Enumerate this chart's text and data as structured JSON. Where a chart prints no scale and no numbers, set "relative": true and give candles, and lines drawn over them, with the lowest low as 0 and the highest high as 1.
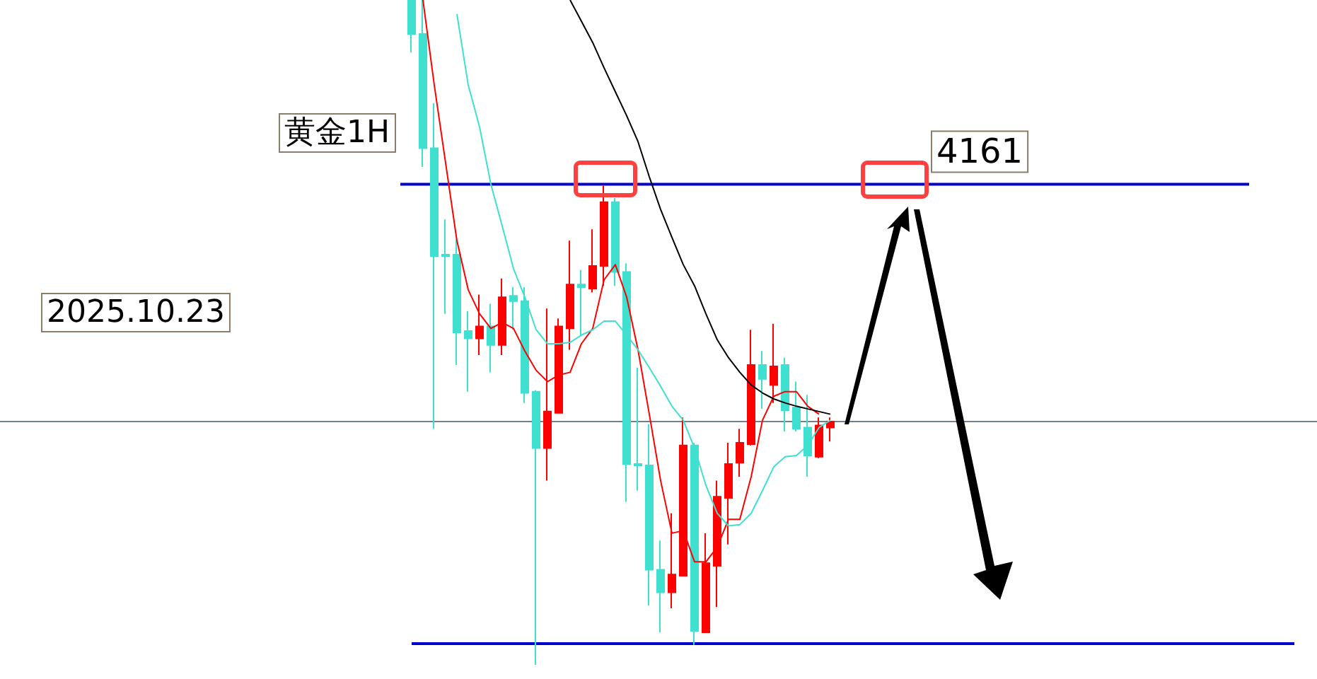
{
  "chart_data": {
    "type": "candlestick",
    "title": "黄金1H",
    "annotations": [
      "2025.10.23",
      "4161"
    ],
    "relative": true,
    "categories": [
      null,
      null,
      null,
      null,
      null,
      null,
      null,
      null,
      null,
      null,
      null,
      null,
      null,
      null,
      null,
      null,
      null,
      null,
      null,
      null,
      null,
      null,
      null,
      null,
      null,
      null,
      null,
      null,
      null,
      null,
      null,
      null,
      null,
      null,
      null,
      null,
      null,
      null
    ],
    "ohlc": [
      [
        1.0,
        1.0,
        0.921,
        0.949
      ],
      [
        0.949,
        1.0,
        0.749,
        0.777
      ],
      [
        0.777,
        0.845,
        0.355,
        0.615
      ],
      [
        0.617,
        0.67,
        0.528,
        0.615
      ],
      [
        0.617,
        0.64,
        0.451,
        0.5
      ],
      [
        0.502,
        0.532,
        0.411,
        0.491
      ],
      [
        0.491,
        0.557,
        0.466,
        0.509
      ],
      [
        0.509,
        0.543,
        0.44,
        0.481
      ],
      [
        0.481,
        0.581,
        0.466,
        0.553
      ],
      [
        0.555,
        0.568,
        0.504,
        0.547
      ],
      [
        0.547,
        0.568,
        0.394,
        0.409
      ],
      [
        0.411,
        0.413,
        0.0,
        0.326
      ],
      [
        0.326,
        0.536,
        0.277,
        0.381
      ],
      [
        0.379,
        0.521,
        0.379,
        0.509
      ],
      [
        0.506,
        0.638,
        0.474,
        0.572
      ],
      [
        0.572,
        0.594,
        0.494,
        0.568
      ],
      [
        0.566,
        0.655,
        0.56,
        0.6
      ],
      [
        0.6,
        0.721,
        0.57,
        0.696
      ],
      [
        0.696,
        0.702,
        0.57,
        0.591
      ],
      [
        0.591,
        0.604,
        0.245,
        0.302
      ],
      [
        0.302,
        0.447,
        0.262,
        0.3
      ],
      [
        0.3,
        0.362,
        0.089,
        0.143
      ],
      [
        0.143,
        0.187,
        0.049,
        0.109
      ],
      [
        0.109,
        0.228,
        0.085,
        0.136
      ],
      [
        0.134,
        0.372,
        0.134,
        0.33
      ],
      [
        0.33,
        0.334,
        0.03,
        0.051
      ],
      [
        0.049,
        0.198,
        0.049,
        0.153
      ],
      [
        0.149,
        0.277,
        0.087,
        0.253
      ],
      [
        0.251,
        0.334,
        0.181,
        0.302
      ],
      [
        0.304,
        0.355,
        0.283,
        0.334
      ],
      [
        0.332,
        0.504,
        0.33,
        0.451
      ],
      [
        0.451,
        0.472,
        0.385,
        0.43
      ],
      [
        0.421,
        0.513,
        0.394,
        0.449
      ],
      [
        0.451,
        0.462,
        0.351,
        0.383
      ],
      [
        0.387,
        0.426,
        0.351,
        0.355
      ],
      [
        0.357,
        0.406,
        0.283,
        0.315
      ],
      [
        0.313,
        0.372,
        0.311,
        0.36
      ],
      [
        0.357,
        0.372,
        0.336,
        0.366
      ]
    ],
    "colors": [
      "#40e0d0",
      "#40e0d0",
      "#40e0d0",
      "#40e0d0",
      "#40e0d0",
      "#40e0d0",
      "#ff0000",
      "#40e0d0",
      "#ff0000",
      "#40e0d0",
      "#40e0d0",
      "#40e0d0",
      "#ff0000",
      "#ff0000",
      "#ff0000",
      "#40e0d0",
      "#ff0000",
      "#ff0000",
      "#40e0d0",
      "#40e0d0",
      "#40e0d0",
      "#40e0d0",
      "#40e0d0",
      "#ff0000",
      "#ff0000",
      "#40e0d0",
      "#ff0000",
      "#ff0000",
      "#ff0000",
      "#ff0000",
      "#ff0000",
      "#40e0d0",
      "#ff0000",
      "#40e0d0",
      "#40e0d0",
      "#40e0d0",
      "#ff0000",
      "#ff0000"
    ],
    "series": [
      {
        "type": "line",
        "color": "#ff0000",
        "values": [
          null,
          1.0,
          0.872,
          0.755,
          0.638,
          0.564,
          0.528,
          0.506,
          0.515,
          0.506,
          0.472,
          0.443,
          0.426,
          0.436,
          0.44,
          0.483,
          0.506,
          0.579,
          0.602,
          0.553,
          0.474,
          0.377,
          0.277,
          0.198,
          0.202,
          0.155,
          0.155,
          0.177,
          0.219,
          0.219,
          0.283,
          0.368,
          0.404,
          0.411,
          0.411,
          0.389,
          0.377,
          null
        ]
      },
      {
        "type": "line",
        "color": "#40e0d0",
        "values": [
          null,
          null,
          null,
          null,
          0.979,
          0.872,
          0.809,
          0.723,
          0.66,
          0.596,
          0.553,
          0.504,
          0.483,
          0.483,
          0.485,
          0.496,
          0.504,
          0.517,
          0.517,
          0.496,
          0.474,
          0.447,
          0.419,
          0.389,
          0.368,
          0.326,
          0.27,
          0.228,
          0.209,
          0.211,
          0.228,
          0.262,
          0.298,
          0.313,
          0.315,
          0.33,
          0.357,
          0.368
        ]
      },
      {
        "type": "line",
        "color": "#000000",
        "values": [
          null,
          null,
          null,
          null,
          null,
          null,
          null,
          null,
          null,
          null,
          null,
          null,
          null,
          null,
          1.0,
          0.968,
          0.936,
          0.898,
          0.862,
          0.826,
          0.787,
          0.734,
          0.685,
          0.643,
          0.602,
          0.57,
          0.528,
          0.489,
          0.462,
          0.44,
          0.421,
          0.409,
          0.4,
          0.394,
          0.389,
          0.385,
          0.381,
          0.377
        ]
      }
    ],
    "ref_lines": [
      {
        "axis": "y",
        "value": 0.723,
        "color": "#0000cc"
      },
      {
        "axis": "y",
        "value": 0.366,
        "color": "#708090"
      },
      {
        "axis": "y",
        "value": 0.032,
        "color": "#0000cc"
      }
    ],
    "marker": "none",
    "line_style": "solid"
  }
}
